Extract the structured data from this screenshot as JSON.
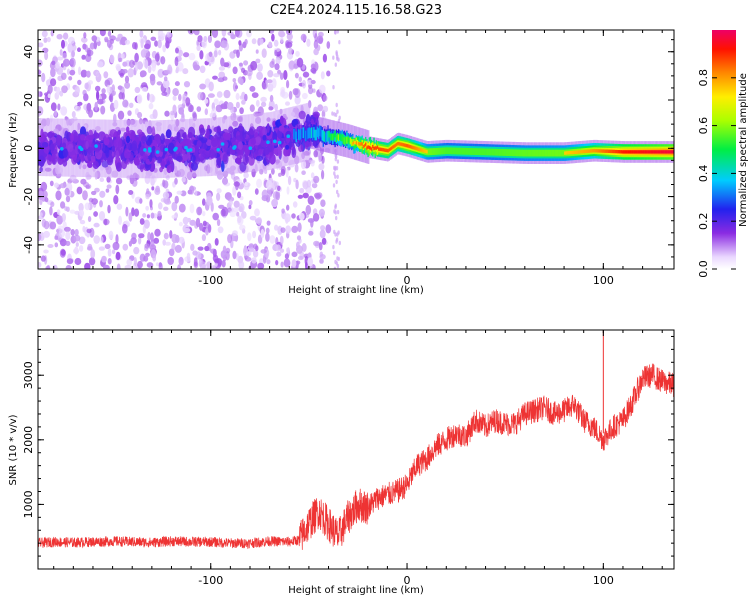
{
  "title": "C2E4.2024.115.16.58.G23",
  "chart_data": [
    {
      "type": "heatmap",
      "xlabel": "Height of straight line (km)",
      "ylabel": "Frequency (Hz)",
      "xlim": [
        -188,
        136
      ],
      "ylim": [
        -50,
        49
      ],
      "x_ticks": [
        -100,
        0,
        100
      ],
      "y_ticks": [
        -40,
        -20,
        0,
        20,
        40
      ],
      "x_tick_labels": [
        "-100",
        "0",
        "100"
      ],
      "y_tick_labels": [
        "-40",
        "-20",
        "0",
        "20",
        "40"
      ],
      "colorbar": {
        "label": "Normalized spectral amplitude",
        "range": [
          0,
          1
        ],
        "ticks": [
          0.0,
          0.2,
          0.4,
          0.6,
          0.8
        ],
        "tick_labels": [
          "0.0",
          "0.2",
          "0.4",
          "0.6",
          "0.8"
        ],
        "colormap": "rainbow (white-violet-blue-cyan-green-yellow-orange-red-magenta)"
      },
      "ridge": [
        {
          "x": -188,
          "freq": 0.5,
          "amp": 0.18
        },
        {
          "x": -160,
          "freq": 0.0,
          "amp": 0.17
        },
        {
          "x": -130,
          "freq": -0.5,
          "amp": 0.2
        },
        {
          "x": -100,
          "freq": 0.5,
          "amp": 0.22
        },
        {
          "x": -70,
          "freq": 3.0,
          "amp": 0.25
        },
        {
          "x": -60,
          "freq": 5.0,
          "amp": 0.3
        },
        {
          "x": -50,
          "freq": 7.0,
          "amp": 0.4
        },
        {
          "x": -40,
          "freq": 5.0,
          "amp": 0.45
        },
        {
          "x": -30,
          "freq": 3.0,
          "amp": 0.55
        },
        {
          "x": -20,
          "freq": 0.5,
          "amp": 0.85
        },
        {
          "x": -10,
          "freq": -1.0,
          "amp": 0.8
        },
        {
          "x": -5,
          "freq": 2.0,
          "amp": 0.75
        },
        {
          "x": 0,
          "freq": 1.0,
          "amp": 0.8
        },
        {
          "x": 10,
          "freq": -1.5,
          "amp": 0.6
        },
        {
          "x": 20,
          "freq": -1.0,
          "amp": 0.55
        },
        {
          "x": 40,
          "freq": -1.5,
          "amp": 0.55
        },
        {
          "x": 60,
          "freq": -2.0,
          "amp": 0.58
        },
        {
          "x": 80,
          "freq": -2.0,
          "amp": 0.6
        },
        {
          "x": 95,
          "freq": -1.0,
          "amp": 0.7
        },
        {
          "x": 110,
          "freq": -1.5,
          "amp": 0.9
        },
        {
          "x": 136,
          "freq": -1.5,
          "amp": 1.0
        }
      ],
      "noise_region_x": [
        -188,
        -55
      ]
    },
    {
      "type": "line",
      "xlabel": "Height of straight line (km)",
      "ylabel": "SNR (10 * v/v)",
      "xlim": [
        -188,
        136
      ],
      "ylim": [
        0,
        3700
      ],
      "x_ticks": [
        -100,
        0,
        100
      ],
      "y_ticks": [
        1000,
        2000,
        3000
      ],
      "x_tick_labels": [
        "-100",
        "0",
        "100"
      ],
      "y_tick_labels": [
        "1000",
        "2000",
        "3000"
      ],
      "series": [
        {
          "color": "#ee3333",
          "x": [
            -188,
            -180,
            -170,
            -160,
            -150,
            -140,
            -130,
            -120,
            -110,
            -100,
            -90,
            -80,
            -70,
            -60,
            -55,
            -50,
            -45,
            -40,
            -35,
            -30,
            -25,
            -20,
            -15,
            -10,
            -5,
            0,
            5,
            10,
            15,
            20,
            25,
            30,
            35,
            40,
            45,
            50,
            55,
            60,
            65,
            70,
            75,
            80,
            85,
            90,
            95,
            100,
            105,
            110,
            115,
            120,
            125,
            130,
            136
          ],
          "y": [
            400,
            420,
            410,
            420,
            430,
            420,
            410,
            430,
            420,
            420,
            400,
            400,
            430,
            420,
            450,
            700,
            900,
            700,
            500,
            800,
            1000,
            950,
            1100,
            1150,
            1200,
            1300,
            1600,
            1700,
            1900,
            2000,
            2100,
            2050,
            2300,
            2200,
            2300,
            2250,
            2250,
            2400,
            2450,
            2500,
            2400,
            2450,
            2550,
            2300,
            2200,
            2000,
            2200,
            2300,
            2600,
            2950,
            3000,
            2900,
            2850
          ]
        }
      ]
    }
  ]
}
